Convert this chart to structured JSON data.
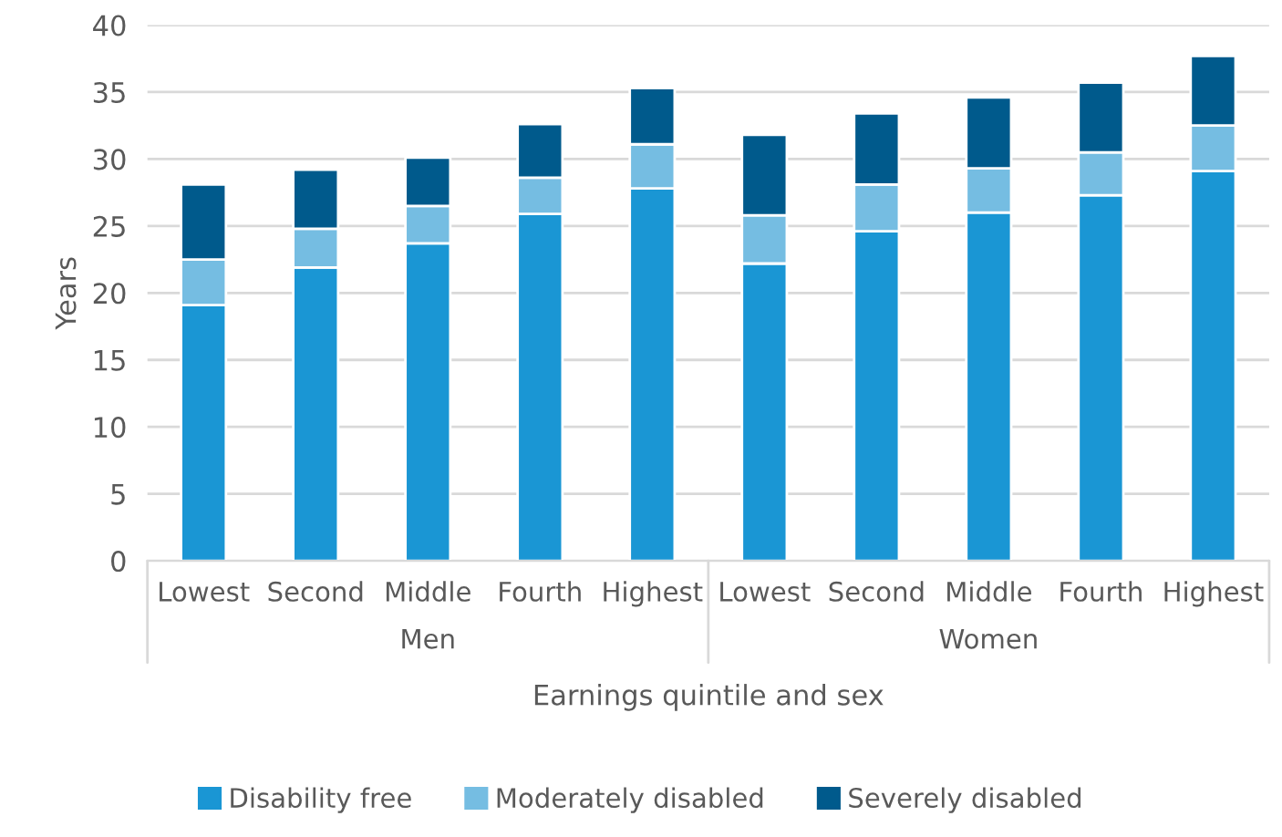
{
  "chart_data": {
    "type": "bar",
    "stacked": true,
    "ylabel": "Years",
    "xlabel": "Earnings quintile and sex",
    "categories": [
      "Lowest",
      "Second",
      "Middle",
      "Fourth",
      "Highest",
      "Lowest",
      "Second",
      "Middle",
      "Fourth",
      "Highest"
    ],
    "annotations": [
      "Men",
      "Women"
    ],
    "series": [
      {
        "name": "Disability free",
        "color": "#1a96d4",
        "values": [
          19.1,
          21.9,
          23.7,
          25.9,
          27.8,
          22.2,
          24.6,
          26.0,
          27.3,
          29.1
        ]
      },
      {
        "name": "Moderately disabled",
        "color": "#75bde2",
        "values": [
          3.4,
          2.9,
          2.8,
          2.7,
          3.3,
          3.6,
          3.5,
          3.3,
          3.2,
          3.4
        ]
      },
      {
        "name": "Severely disabled",
        "color": "#005a8c",
        "values": [
          5.6,
          4.4,
          3.6,
          4.0,
          4.2,
          6.0,
          5.3,
          5.3,
          5.2,
          5.2
        ]
      }
    ],
    "ylim": [
      0,
      40
    ],
    "yticks": [
      0,
      5,
      10,
      15,
      20,
      25,
      30,
      35,
      40
    ],
    "grid": "y",
    "legend": "bottom"
  }
}
